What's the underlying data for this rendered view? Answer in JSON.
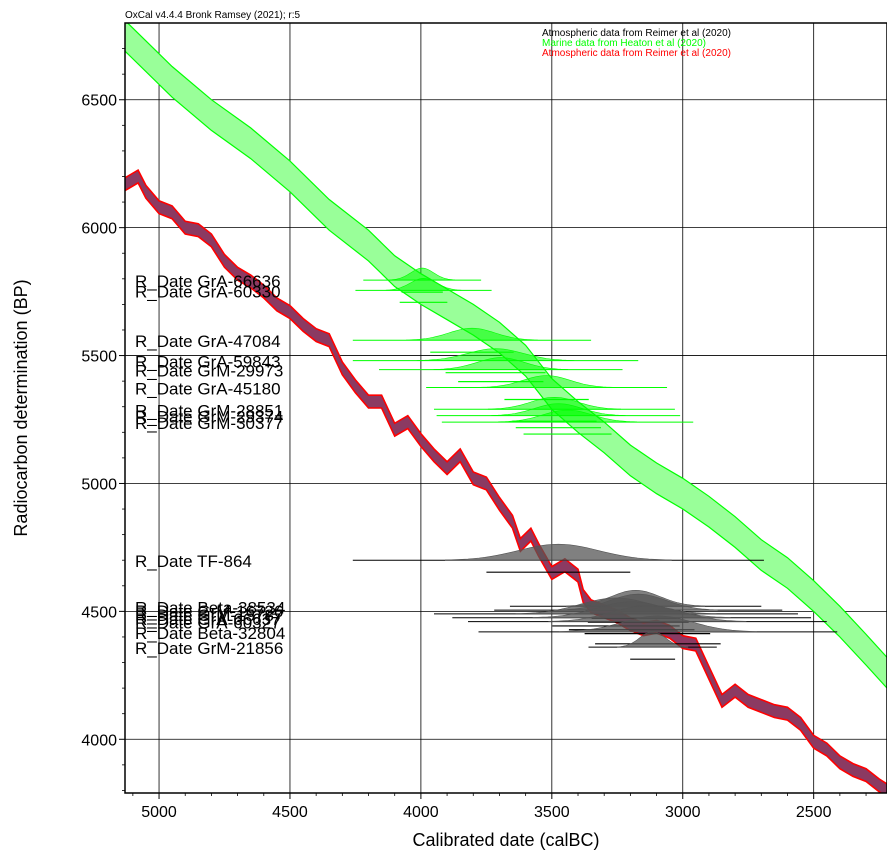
{
  "header": {
    "version_text": "OxCal v4.4.4 Bronk Ramsey (2021); r:5"
  },
  "colors": {
    "atmospheric": "#000000",
    "marine": "#00ff00",
    "marine_fill": "#99ff99",
    "atmos_red": "#ff0000",
    "atmos_fill": "#8b3a62",
    "grid": "#000000",
    "dist_dark": "#555555"
  },
  "chart_data": {
    "type": "line",
    "xlabel": "Calibrated date (calBC)",
    "ylabel": "Radiocarbon determination (BP)",
    "xlim": [
      5130,
      2220
    ],
    "ylim": [
      3790,
      6800
    ],
    "x_ticks": [
      "5000",
      "4500",
      "4000",
      "3500",
      "3000",
      "2500"
    ],
    "x_tick_values": [
      5000,
      4500,
      4000,
      3500,
      3000,
      2500
    ],
    "y_ticks": [
      "4000",
      "4500",
      "5000",
      "5500",
      "6000",
      "6500"
    ],
    "y_tick_values": [
      4000,
      4500,
      5000,
      5500,
      6000,
      6500
    ],
    "grid": true,
    "legend_position": "top-right",
    "legend": [
      {
        "label": "Atmospheric data from Reimer et al (2020)",
        "color": "#000000"
      },
      {
        "label": "Marine data from Heaton et al (2020)",
        "color": "#00ff00"
      },
      {
        "label": "Atmospheric data from Reimer et al (2020)",
        "color": "#ff0000"
      }
    ],
    "series": [
      {
        "name": "Marine data from Heaton et al (2020)",
        "x": [
          5130,
          4950,
          4800,
          4650,
          4500,
          4350,
          4200,
          4100,
          4000,
          3900,
          3800,
          3700,
          3600,
          3500,
          3400,
          3300,
          3200,
          3100,
          3000,
          2900,
          2800,
          2700,
          2600,
          2500,
          2400,
          2300,
          2220
        ],
        "y": [
          6750,
          6570,
          6440,
          6330,
          6200,
          6050,
          5930,
          5830,
          5760,
          5700,
          5640,
          5570,
          5480,
          5350,
          5260,
          5180,
          5090,
          5020,
          4960,
          4890,
          4810,
          4720,
          4650,
          4560,
          4460,
          4350,
          4260
        ],
        "band": 60
      },
      {
        "name": "Atmospheric data from Reimer et al (2020)",
        "x": [
          5130,
          5080,
          5050,
          5000,
          4950,
          4900,
          4850,
          4800,
          4750,
          4700,
          4650,
          4600,
          4550,
          4500,
          4450,
          4400,
          4350,
          4300,
          4250,
          4200,
          4150,
          4100,
          4050,
          4000,
          3950,
          3900,
          3850,
          3800,
          3750,
          3700,
          3650,
          3620,
          3580,
          3550,
          3500,
          3450,
          3400,
          3380,
          3350,
          3300,
          3250,
          3200,
          3150,
          3100,
          3050,
          3000,
          2950,
          2900,
          2850,
          2800,
          2750,
          2700,
          2650,
          2600,
          2550,
          2500,
          2450,
          2400,
          2350,
          2300,
          2250,
          2220
        ],
        "y": [
          6170,
          6200,
          6140,
          6080,
          6060,
          6000,
          5990,
          5950,
          5870,
          5820,
          5790,
          5750,
          5700,
          5670,
          5620,
          5580,
          5560,
          5450,
          5380,
          5320,
          5320,
          5210,
          5240,
          5170,
          5110,
          5060,
          5110,
          5020,
          5000,
          4920,
          4850,
          4760,
          4800,
          4740,
          4650,
          4680,
          4640,
          4560,
          4520,
          4500,
          4480,
          4450,
          4430,
          4440,
          4420,
          4380,
          4370,
          4260,
          4150,
          4190,
          4150,
          4130,
          4110,
          4100,
          4060,
          3990,
          3960,
          3910,
          3880,
          3860,
          3820,
          3800
        ],
        "band": 25
      }
    ],
    "dates": [
      {
        "label": "R_Date GrA-66636",
        "curve": "marine",
        "bp": 5795,
        "range": [
          4220,
          3770
        ]
      },
      {
        "label": "R_Date GrA-60330",
        "curve": "marine",
        "bp": 5755,
        "range": [
          4250,
          3730
        ]
      },
      {
        "label": "R_Date GrA-47084",
        "curve": "marine",
        "bp": 5560,
        "range": [
          4260,
          3350
        ]
      },
      {
        "label": "R_Date GrA-59843",
        "curve": "marine",
        "bp": 5480,
        "range": [
          4260,
          3170
        ]
      },
      {
        "label": "R_Date GrM-29973",
        "curve": "marine",
        "bp": 5445,
        "range": [
          4160,
          3230
        ]
      },
      {
        "label": "R_Date GrA-45180",
        "curve": "marine",
        "bp": 5375,
        "range": [
          3980,
          3060
        ]
      },
      {
        "label": "R_Date GrM-28851",
        "curve": "marine",
        "bp": 5290,
        "range": [
          3950,
          3030
        ]
      },
      {
        "label": "R_Date GrM-29374",
        "curve": "marine",
        "bp": 5265,
        "range": [
          3940,
          3010
        ]
      },
      {
        "label": "R_Date GrM-30377",
        "curve": "marine",
        "bp": 5240,
        "range": [
          3920,
          2960
        ]
      },
      {
        "label": "R_Date TF-864",
        "curve": "atmospheric",
        "bp": 4700,
        "range": [
          4260,
          2690
        ]
      },
      {
        "label": "R_Date Beta-38534",
        "curve": "atmospheric",
        "bp": 4520,
        "range": [
          3660,
          2700
        ]
      },
      {
        "label": "R_Date GrM-16726",
        "curve": "atmospheric",
        "bp": 4505,
        "range": [
          3720,
          2620
        ]
      },
      {
        "label": "R_Date GrM-15787",
        "curve": "atmospheric",
        "bp": 4490,
        "range": [
          3950,
          2560
        ]
      },
      {
        "label": "R_Date GrA-66637",
        "curve": "atmospheric",
        "bp": 4475,
        "range": [
          3880,
          2510
        ]
      },
      {
        "label": "R_Date GrA-60327",
        "curve": "atmospheric",
        "bp": 4460,
        "range": [
          3820,
          2450
        ]
      },
      {
        "label": "R_Date Beta-32804",
        "curve": "atmospheric",
        "bp": 4420,
        "range": [
          3780,
          2410
        ]
      },
      {
        "label": "R_Date GrM-21856",
        "curve": "atmospheric",
        "bp": 4360,
        "range": [
          3360,
          2870
        ]
      }
    ]
  }
}
